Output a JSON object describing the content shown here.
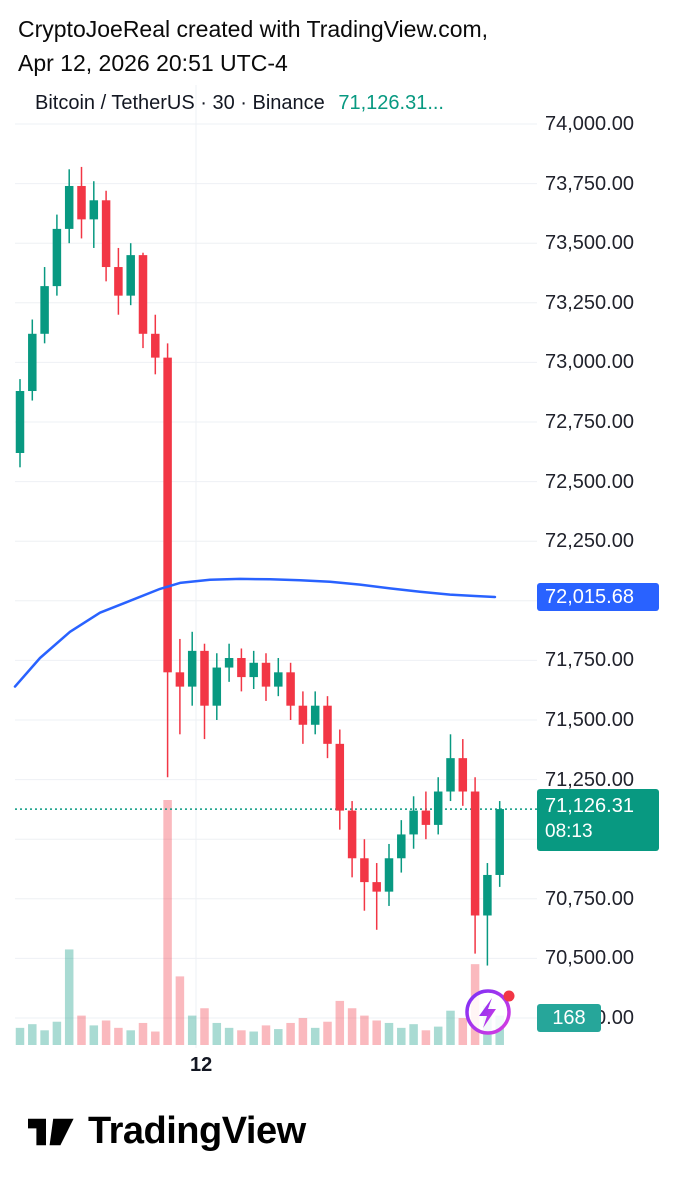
{
  "attribution": {
    "line1": "CryptoJoeReal created with TradingView.com,",
    "line2": "Apr 12, 2026 20:51 UTC-4"
  },
  "header": {
    "symbol": "Bitcoin / TetherUS · 30 · Binance",
    "last_price_preview": "71,126.31..."
  },
  "price_scale": {
    "labels": [
      {
        "text": "74,000.00",
        "price": 74000
      },
      {
        "text": "73,750.00",
        "price": 73750
      },
      {
        "text": "73,500.00",
        "price": 73500
      },
      {
        "text": "73,250.00",
        "price": 73250
      },
      {
        "text": "73,000.00",
        "price": 73000
      },
      {
        "text": "72,750.00",
        "price": 72750
      },
      {
        "text": "72,500.00",
        "price": 72500
      },
      {
        "text": "72,250.00",
        "price": 72250
      },
      {
        "text": "71,750.00",
        "price": 71750
      },
      {
        "text": "71,500.00",
        "price": 71500
      },
      {
        "text": "71,250.00",
        "price": 71250
      },
      {
        "text": "70,750.00",
        "price": 70750
      },
      {
        "text": "70,500.00",
        "price": 70500
      },
      {
        "text": "70,250.00",
        "price": 70250
      }
    ]
  },
  "badges": {
    "ma_value": {
      "label": "72,015.68",
      "value": 72015.68,
      "color": "#2962ff"
    },
    "last_price": {
      "label": "71,126.31",
      "countdown": "08:13",
      "value": 71126.31,
      "color": "#089981"
    },
    "volume_value": {
      "label": "168",
      "anchor_price": 70250,
      "color": "#26a69a"
    }
  },
  "x_axis": {
    "label": "12"
  },
  "icons": {
    "flash": "lightning-flash-icon",
    "notification_dot_color": "#f23645"
  },
  "footer": {
    "brand": "TradingView"
  },
  "chart_data": {
    "type": "candlestick",
    "title": "Bitcoin / TetherUS · 30 · Binance",
    "symbol": "Bitcoin / TetherUS",
    "interval": "30",
    "exchange": "Binance",
    "last_price": 71126.31,
    "bar_countdown": "08:13",
    "ma_value": 72015.68,
    "volume_value": 168,
    "y_axis": {
      "min": 70250,
      "max": 74000,
      "tick_step": 250
    },
    "x_axis": {
      "visible_label": "12"
    },
    "legend_visible": false,
    "grid": true,
    "colors": {
      "up": "#089981",
      "down": "#f23645",
      "vol_up": "rgba(8,153,129,0.35)",
      "vol_down": "rgba(242,54,69,0.35)",
      "ma": "#2962ff",
      "last_line": "#089981",
      "grid": "#eef0f4"
    },
    "candle_format": [
      "open",
      "high",
      "low",
      "close",
      "volume_rel"
    ],
    "candles": [
      [
        72620,
        72930,
        72560,
        72880,
        70
      ],
      [
        72880,
        73180,
        72840,
        73120,
        85
      ],
      [
        73120,
        73400,
        73080,
        73320,
        60
      ],
      [
        73320,
        73620,
        73280,
        73560,
        95
      ],
      [
        73560,
        73810,
        73500,
        73740,
        390
      ],
      [
        73740,
        73820,
        73520,
        73600,
        120
      ],
      [
        73600,
        73760,
        73480,
        73680,
        80
      ],
      [
        73680,
        73720,
        73340,
        73400,
        100
      ],
      [
        73400,
        73480,
        73200,
        73280,
        70
      ],
      [
        73280,
        73500,
        73240,
        73450,
        60
      ],
      [
        73450,
        73460,
        73060,
        73120,
        90
      ],
      [
        73120,
        73200,
        72950,
        73020,
        55
      ],
      [
        73020,
        73080,
        71260,
        71700,
        1000
      ],
      [
        71700,
        71840,
        71440,
        71640,
        280
      ],
      [
        71640,
        71870,
        71560,
        71790,
        120
      ],
      [
        71790,
        71820,
        71420,
        71560,
        150
      ],
      [
        71560,
        71780,
        71500,
        71720,
        90
      ],
      [
        71720,
        71820,
        71660,
        71760,
        70
      ],
      [
        71760,
        71800,
        71620,
        71680,
        60
      ],
      [
        71680,
        71790,
        71630,
        71740,
        55
      ],
      [
        71740,
        71780,
        71580,
        71640,
        80
      ],
      [
        71640,
        71760,
        71600,
        71700,
        65
      ],
      [
        71700,
        71740,
        71500,
        71560,
        90
      ],
      [
        71560,
        71620,
        71400,
        71480,
        110
      ],
      [
        71480,
        71620,
        71440,
        71560,
        70
      ],
      [
        71560,
        71600,
        71340,
        71400,
        95
      ],
      [
        71400,
        71460,
        71040,
        71120,
        180
      ],
      [
        71120,
        71160,
        70840,
        70920,
        150
      ],
      [
        70920,
        71000,
        70700,
        70820,
        120
      ],
      [
        70820,
        70900,
        70620,
        70780,
        100
      ],
      [
        70780,
        70980,
        70720,
        70920,
        90
      ],
      [
        70920,
        71080,
        70860,
        71020,
        70
      ],
      [
        71020,
        71180,
        70960,
        71120,
        85
      ],
      [
        71120,
        71200,
        71000,
        71060,
        60
      ],
      [
        71060,
        71260,
        71020,
        71200,
        75
      ],
      [
        71200,
        71440,
        71160,
        71340,
        140
      ],
      [
        71340,
        71420,
        71140,
        71200,
        110
      ],
      [
        71200,
        71260,
        70520,
        70680,
        330
      ],
      [
        70680,
        70900,
        70470,
        70850,
        160
      ],
      [
        70850,
        71160,
        70800,
        71126.31,
        120
      ]
    ],
    "ma_line": [
      [
        15,
        71640
      ],
      [
        40,
        71760
      ],
      [
        70,
        71870
      ],
      [
        100,
        71950
      ],
      [
        130,
        72000
      ],
      [
        160,
        72050
      ],
      [
        180,
        72075
      ],
      [
        210,
        72088
      ],
      [
        240,
        72092
      ],
      [
        270,
        72090
      ],
      [
        300,
        72086
      ],
      [
        330,
        72080
      ],
      [
        360,
        72068
      ],
      [
        390,
        72052
      ],
      [
        420,
        72038
      ],
      [
        450,
        72026
      ],
      [
        475,
        72020
      ],
      [
        495,
        72016
      ]
    ]
  }
}
